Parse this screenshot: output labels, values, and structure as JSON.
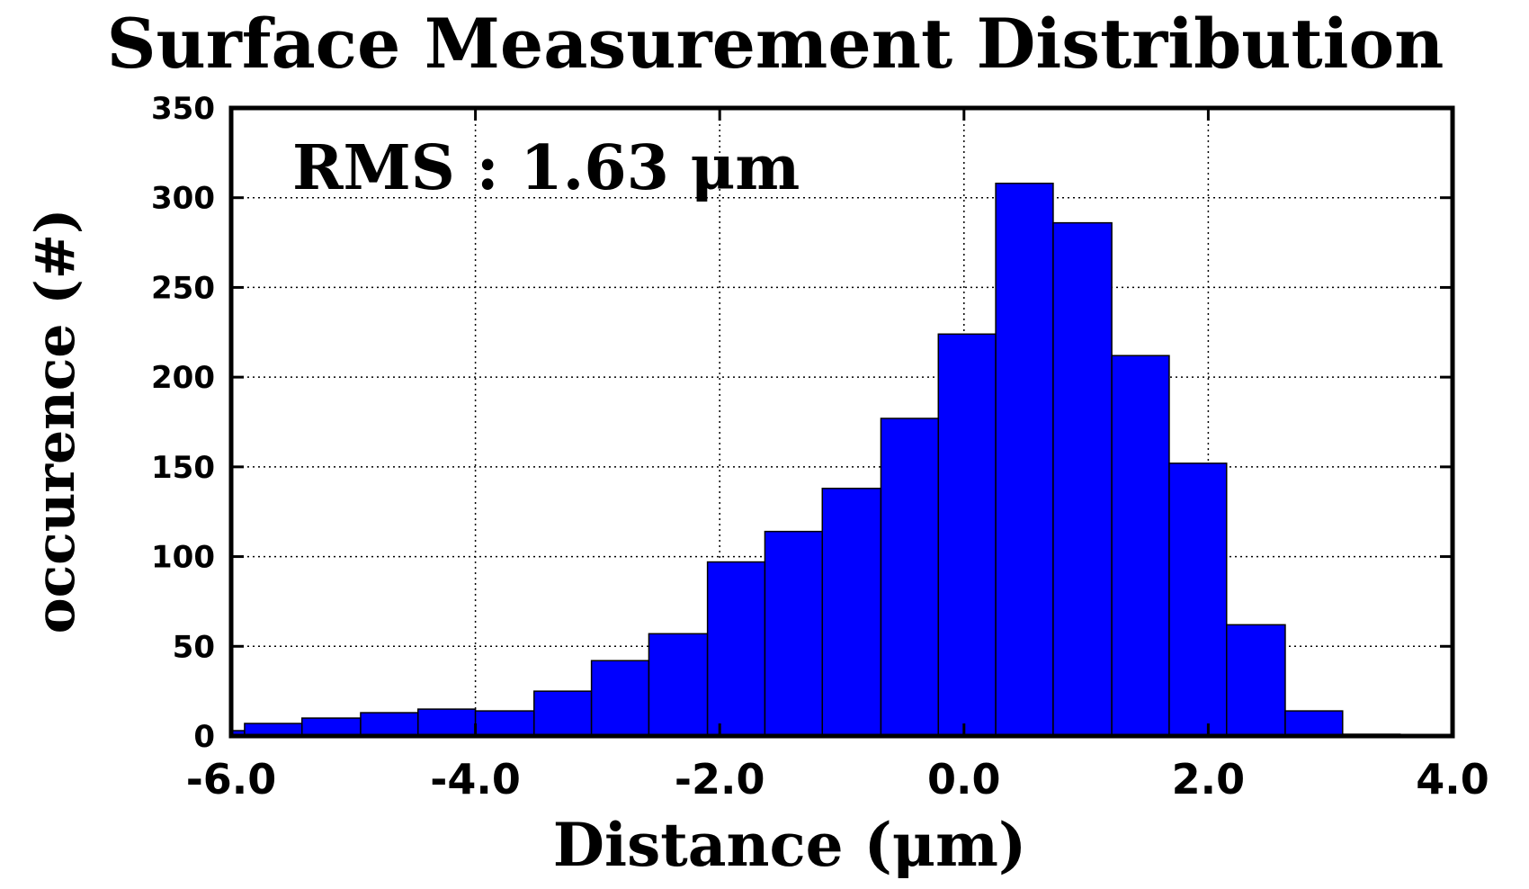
{
  "colors": {
    "bar_fill": "#0000ff",
    "bar_edge": "#000000",
    "axes": "#000000",
    "background": "#ffffff"
  },
  "chart_data": {
    "type": "bar",
    "title": "Surface Measurement Distribution",
    "xlabel": "Distance (μm)",
    "ylabel": "occurence (#)",
    "annotation": {
      "text": "RMS : 1.63 μm",
      "placement": "top-left"
    },
    "xlim": [
      -6.0,
      4.0
    ],
    "ylim": [
      0,
      350
    ],
    "xticks": [
      -6.0,
      -4.0,
      -2.0,
      0.0,
      2.0,
      4.0
    ],
    "xtick_labels": [
      "-6.0",
      "-4.0",
      "-2.0",
      "0.0",
      "2.0",
      "4.0"
    ],
    "yticks": [
      0,
      50,
      100,
      150,
      200,
      250,
      300,
      350
    ],
    "ytick_labels": [
      "0",
      "50",
      "100",
      "150",
      "200",
      "250",
      "300",
      "350"
    ],
    "grid": true,
    "bin_edges": [
      -6.0,
      -5.89,
      -5.42,
      -4.94,
      -4.47,
      -4.0,
      -3.52,
      -3.05,
      -2.58,
      -2.1,
      -1.63,
      -1.16,
      -0.68,
      -0.21,
      0.26,
      0.73,
      1.21,
      1.68,
      2.15,
      2.63,
      3.1,
      3.57
    ],
    "values": [
      3,
      7,
      10,
      13,
      15,
      14,
      25,
      42,
      57,
      97,
      114,
      138,
      177,
      224,
      308,
      286,
      212,
      152,
      62,
      14,
      1
    ]
  }
}
